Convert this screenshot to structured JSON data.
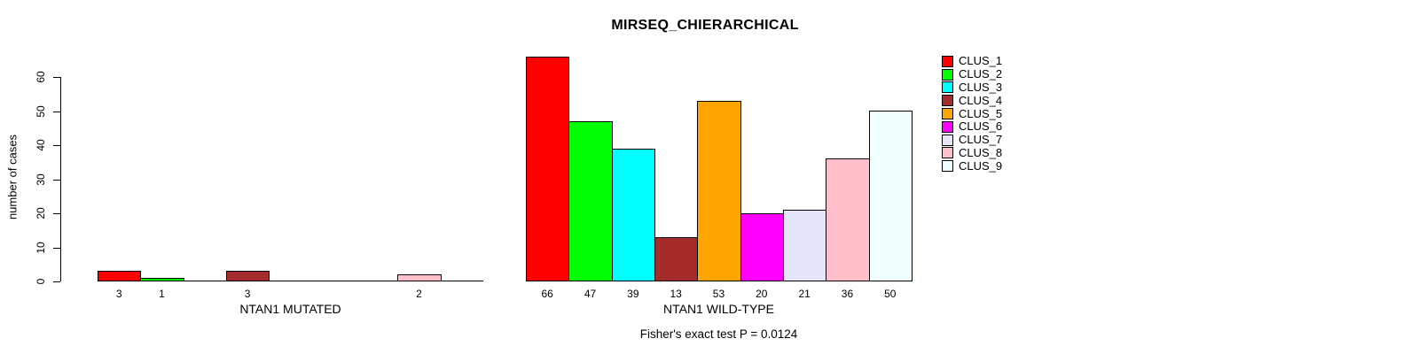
{
  "title": "MIRSEQ_CHIERARCHICAL",
  "footnote": "Fisher's exact test P = 0.0124",
  "y_axis": {
    "label": "number of cases",
    "ticks": [
      0,
      10,
      20,
      30,
      40,
      50,
      60
    ]
  },
  "colors": [
    "#FF0000",
    "#00FF00",
    "#00FFFF",
    "#A52A2A",
    "#FFA500",
    "#FF00FF",
    "#E6E6FA",
    "#FFC0CB",
    "#F0FFFF"
  ],
  "legend": {
    "position": "right",
    "items": [
      {
        "label": "CLUS_1",
        "color": "#FF0000"
      },
      {
        "label": "CLUS_2",
        "color": "#00FF00"
      },
      {
        "label": "CLUS_3",
        "color": "#00FFFF"
      },
      {
        "label": "CLUS_4",
        "color": "#A52A2A"
      },
      {
        "label": "CLUS_5",
        "color": "#FFA500"
      },
      {
        "label": "CLUS_6",
        "color": "#FF00FF"
      },
      {
        "label": "CLUS_7",
        "color": "#E6E6FA"
      },
      {
        "label": "CLUS_8",
        "color": "#FFC0CB"
      },
      {
        "label": "CLUS_9",
        "color": "#F0FFFF"
      }
    ]
  },
  "chart_data": [
    {
      "type": "bar",
      "panel": "NTAN1 MUTATED",
      "xlabel": "NTAN1 MUTATED",
      "categories": [
        "CLUS_1",
        "CLUS_2",
        "CLUS_3",
        "CLUS_4",
        "CLUS_5",
        "CLUS_6",
        "CLUS_7",
        "CLUS_8",
        "CLUS_9"
      ],
      "values": [
        3,
        1,
        0,
        3,
        0,
        0,
        0,
        2,
        0
      ],
      "bar_labels": [
        "3",
        "1",
        "",
        "3",
        "",
        "",
        "",
        "2",
        ""
      ],
      "ylim": [
        0,
        66
      ],
      "grid": false
    },
    {
      "type": "bar",
      "panel": "NTAN1 WILD-TYPE",
      "xlabel": "NTAN1 WILD-TYPE",
      "categories": [
        "CLUS_1",
        "CLUS_2",
        "CLUS_3",
        "CLUS_4",
        "CLUS_5",
        "CLUS_6",
        "CLUS_7",
        "CLUS_8",
        "CLUS_9"
      ],
      "values": [
        66,
        47,
        39,
        13,
        53,
        20,
        21,
        36,
        50
      ],
      "bar_labels": [
        "66",
        "47",
        "39",
        "13",
        "53",
        "20",
        "21",
        "36",
        "50"
      ],
      "ylim": [
        0,
        66
      ],
      "grid": false
    }
  ]
}
